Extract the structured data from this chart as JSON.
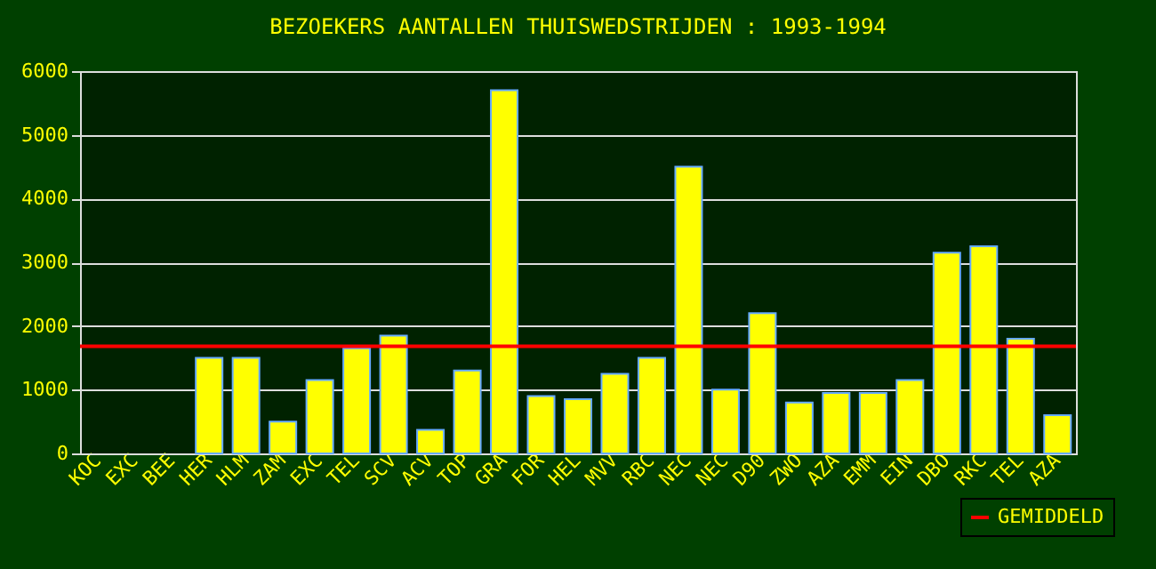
{
  "chart_data": {
    "type": "bar",
    "title": "BEZOEKERS AANTALLEN THUISWEDSTRIJDEN : 1993-1994",
    "categories": [
      "KOC",
      "EXC",
      "BEE",
      "HER",
      "HLM",
      "ZAM",
      "EXC",
      "TEL",
      "SCV",
      "ACV",
      "TOP",
      "GRA",
      "FOR",
      "HEL",
      "MVV",
      "RBC",
      "NEC",
      "NEC",
      "D90",
      "ZWO",
      "AZA",
      "EMM",
      "EIN",
      "DBO",
      "RKC",
      "TEL",
      "AZA"
    ],
    "values": [
      null,
      null,
      null,
      1500,
      1500,
      500,
      1150,
      1650,
      1850,
      370,
      1300,
      5700,
      900,
      850,
      1250,
      1500,
      4500,
      1000,
      2200,
      800,
      950,
      950,
      1150,
      3150,
      3250,
      1800,
      600
    ],
    "color": "#ffff00",
    "ylim": [
      0,
      6000
    ],
    "yticks": [
      0,
      1000,
      2000,
      3000,
      4000,
      5000,
      6000
    ],
    "grid": "y",
    "ref_lines": [
      {
        "axis": "y",
        "value": 1680,
        "label": "GEMIDDELD",
        "color": "#ff0000"
      }
    ],
    "legend": "bottom right"
  }
}
